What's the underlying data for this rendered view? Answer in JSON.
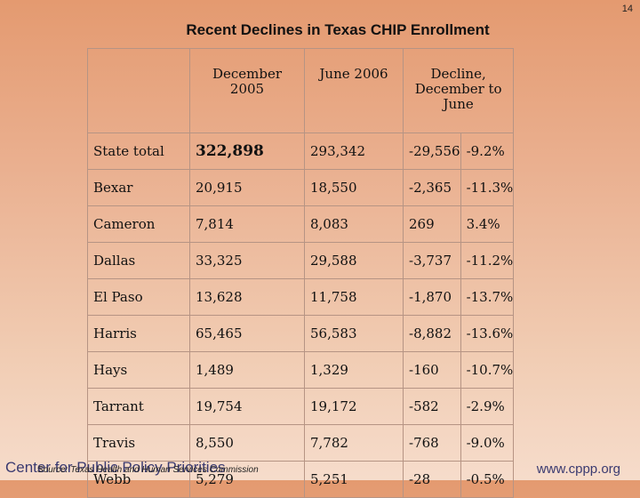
{
  "slide_number": "14",
  "title": "Recent Declines in Texas CHIP Enrollment",
  "columns": [
    "",
    "December 2005",
    "June 2006",
    "Decline, December to June",
    ""
  ],
  "rows": [
    {
      "label": "State total",
      "dec": "322,898",
      "jun": "293,342",
      "decline": "-29,556",
      "pct": "-9.2%"
    },
    {
      "label": "Bexar",
      "dec": "20,915",
      "jun": "18,550",
      "decline": "-2,365",
      "pct": "-11.3%"
    },
    {
      "label": "Cameron",
      "dec": "7,814",
      "jun": "8,083",
      "decline": "269",
      "pct": "3.4%"
    },
    {
      "label": "Dallas",
      "dec": "33,325",
      "jun": "29,588",
      "decline": "-3,737",
      "pct": "-11.2%"
    },
    {
      "label": "El Paso",
      "dec": "13,628",
      "jun": "11,758",
      "decline": "-1,870",
      "pct": "-13.7%"
    },
    {
      "label": "Harris",
      "dec": "65,465",
      "jun": "56,583",
      "decline": "-8,882",
      "pct": "-13.6%"
    },
    {
      "label": "Hays",
      "dec": "1,489",
      "jun": "1,329",
      "decline": "-160",
      "pct": "-10.7%"
    },
    {
      "label": "Tarrant",
      "dec": "19,754",
      "jun": "19,172",
      "decline": "-582",
      "pct": "-2.9%"
    },
    {
      "label": "Travis",
      "dec": "8,550",
      "jun": "7,782",
      "decline": "-768",
      "pct": "-9.0%"
    },
    {
      "label": "Webb",
      "dec": "5,279",
      "jun": "5,251",
      "decline": "-28",
      "pct": "-0.5%"
    }
  ],
  "footer": {
    "org": "Center for Public Policy Priorities",
    "source": "Source: Texas Health and Human Services Commission",
    "url": "www.cppp.org"
  }
}
